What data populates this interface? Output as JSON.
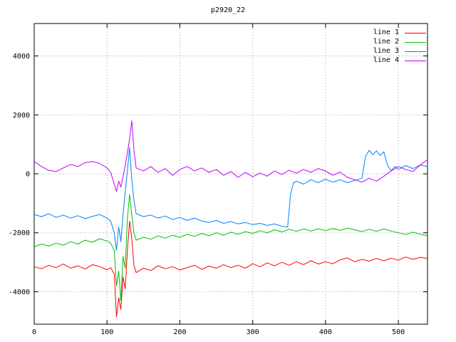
{
  "title": "p2920_22",
  "chart_data": {
    "type": "line",
    "title": "p2920_22",
    "xlabel": "",
    "ylabel": "",
    "xlim": [
      0,
      540
    ],
    "ylim": [
      -5100,
      5100
    ],
    "xticks": [
      0,
      100,
      200,
      300,
      400,
      500
    ],
    "yticks": [
      -4000,
      -2000,
      0,
      2000,
      4000
    ],
    "grid": true,
    "grid_color": "#a0a0a0",
    "border_color": "#000000",
    "legend_position": "top-right",
    "series": [
      {
        "name": "line 1",
        "color": "#ff0000",
        "points": [
          [
            0,
            -3150
          ],
          [
            10,
            -3220
          ],
          [
            20,
            -3100
          ],
          [
            30,
            -3180
          ],
          [
            40,
            -3060
          ],
          [
            50,
            -3200
          ],
          [
            60,
            -3120
          ],
          [
            70,
            -3230
          ],
          [
            80,
            -3080
          ],
          [
            90,
            -3150
          ],
          [
            100,
            -3250
          ],
          [
            105,
            -3180
          ],
          [
            110,
            -3400
          ],
          [
            113,
            -4850
          ],
          [
            116,
            -4200
          ],
          [
            119,
            -4600
          ],
          [
            122,
            -3500
          ],
          [
            125,
            -3900
          ],
          [
            128,
            -2600
          ],
          [
            131,
            -1600
          ],
          [
            134,
            -2200
          ],
          [
            137,
            -3100
          ],
          [
            140,
            -3350
          ],
          [
            150,
            -3200
          ],
          [
            160,
            -3280
          ],
          [
            170,
            -3120
          ],
          [
            180,
            -3220
          ],
          [
            190,
            -3150
          ],
          [
            200,
            -3260
          ],
          [
            210,
            -3180
          ],
          [
            220,
            -3100
          ],
          [
            230,
            -3240
          ],
          [
            240,
            -3130
          ],
          [
            250,
            -3200
          ],
          [
            260,
            -3080
          ],
          [
            270,
            -3180
          ],
          [
            280,
            -3100
          ],
          [
            290,
            -3200
          ],
          [
            300,
            -3050
          ],
          [
            310,
            -3150
          ],
          [
            320,
            -3020
          ],
          [
            330,
            -3120
          ],
          [
            340,
            -3000
          ],
          [
            350,
            -3100
          ],
          [
            360,
            -2980
          ],
          [
            370,
            -3080
          ],
          [
            380,
            -2950
          ],
          [
            390,
            -3060
          ],
          [
            400,
            -2980
          ],
          [
            410,
            -3050
          ],
          [
            420,
            -2920
          ],
          [
            430,
            -2850
          ],
          [
            440,
            -2980
          ],
          [
            450,
            -2900
          ],
          [
            460,
            -2960
          ],
          [
            470,
            -2870
          ],
          [
            480,
            -2950
          ],
          [
            490,
            -2860
          ],
          [
            500,
            -2930
          ],
          [
            510,
            -2820
          ],
          [
            520,
            -2900
          ],
          [
            530,
            -2830
          ],
          [
            540,
            -2870
          ]
        ]
      },
      {
        "name": "line 2",
        "color": "#00c000",
        "points": [
          [
            0,
            -2480
          ],
          [
            10,
            -2380
          ],
          [
            20,
            -2450
          ],
          [
            30,
            -2350
          ],
          [
            40,
            -2420
          ],
          [
            50,
            -2300
          ],
          [
            60,
            -2380
          ],
          [
            70,
            -2250
          ],
          [
            80,
            -2320
          ],
          [
            90,
            -2200
          ],
          [
            100,
            -2280
          ],
          [
            105,
            -2350
          ],
          [
            110,
            -2600
          ],
          [
            113,
            -3800
          ],
          [
            116,
            -3300
          ],
          [
            119,
            -4300
          ],
          [
            122,
            -2800
          ],
          [
            125,
            -3200
          ],
          [
            128,
            -1500
          ],
          [
            131,
            -700
          ],
          [
            134,
            -1400
          ],
          [
            137,
            -2000
          ],
          [
            140,
            -2250
          ],
          [
            150,
            -2150
          ],
          [
            160,
            -2220
          ],
          [
            170,
            -2100
          ],
          [
            180,
            -2180
          ],
          [
            190,
            -2080
          ],
          [
            200,
            -2150
          ],
          [
            210,
            -2050
          ],
          [
            220,
            -2120
          ],
          [
            230,
            -2020
          ],
          [
            240,
            -2100
          ],
          [
            250,
            -2000
          ],
          [
            260,
            -2080
          ],
          [
            270,
            -1980
          ],
          [
            280,
            -2050
          ],
          [
            290,
            -1960
          ],
          [
            300,
            -2020
          ],
          [
            310,
            -1930
          ],
          [
            320,
            -2000
          ],
          [
            330,
            -1900
          ],
          [
            340,
            -1970
          ],
          [
            350,
            -1880
          ],
          [
            360,
            -1950
          ],
          [
            370,
            -1870
          ],
          [
            380,
            -1940
          ],
          [
            390,
            -1860
          ],
          [
            400,
            -1930
          ],
          [
            410,
            -1850
          ],
          [
            420,
            -1920
          ],
          [
            430,
            -1840
          ],
          [
            440,
            -1900
          ],
          [
            450,
            -1960
          ],
          [
            460,
            -1880
          ],
          [
            470,
            -1950
          ],
          [
            480,
            -1870
          ],
          [
            490,
            -1940
          ],
          [
            500,
            -2000
          ],
          [
            510,
            -2060
          ],
          [
            520,
            -1980
          ],
          [
            530,
            -2050
          ],
          [
            540,
            -2100
          ]
        ]
      },
      {
        "name": "line 3",
        "color": "#0080ff",
        "points": [
          [
            0,
            -1380
          ],
          [
            10,
            -1450
          ],
          [
            20,
            -1350
          ],
          [
            30,
            -1480
          ],
          [
            40,
            -1400
          ],
          [
            50,
            -1500
          ],
          [
            60,
            -1420
          ],
          [
            70,
            -1520
          ],
          [
            80,
            -1440
          ],
          [
            90,
            -1380
          ],
          [
            100,
            -1500
          ],
          [
            105,
            -1600
          ],
          [
            110,
            -2000
          ],
          [
            113,
            -2600
          ],
          [
            116,
            -1800
          ],
          [
            119,
            -2300
          ],
          [
            122,
            -1400
          ],
          [
            125,
            -600
          ],
          [
            128,
            100
          ],
          [
            131,
            900
          ],
          [
            134,
            -200
          ],
          [
            137,
            -900
          ],
          [
            140,
            -1350
          ],
          [
            150,
            -1450
          ],
          [
            160,
            -1400
          ],
          [
            170,
            -1500
          ],
          [
            180,
            -1430
          ],
          [
            190,
            -1550
          ],
          [
            200,
            -1480
          ],
          [
            210,
            -1580
          ],
          [
            220,
            -1500
          ],
          [
            230,
            -1600
          ],
          [
            240,
            -1650
          ],
          [
            250,
            -1580
          ],
          [
            260,
            -1680
          ],
          [
            270,
            -1620
          ],
          [
            280,
            -1700
          ],
          [
            290,
            -1650
          ],
          [
            300,
            -1720
          ],
          [
            310,
            -1680
          ],
          [
            320,
            -1750
          ],
          [
            330,
            -1700
          ],
          [
            340,
            -1780
          ],
          [
            348,
            -1800
          ],
          [
            352,
            -700
          ],
          [
            356,
            -300
          ],
          [
            360,
            -250
          ],
          [
            370,
            -350
          ],
          [
            380,
            -200
          ],
          [
            390,
            -300
          ],
          [
            400,
            -180
          ],
          [
            410,
            -280
          ],
          [
            420,
            -200
          ],
          [
            430,
            -300
          ],
          [
            440,
            -220
          ],
          [
            450,
            -150
          ],
          [
            455,
            600
          ],
          [
            460,
            800
          ],
          [
            465,
            650
          ],
          [
            470,
            780
          ],
          [
            475,
            620
          ],
          [
            480,
            750
          ],
          [
            485,
            300
          ],
          [
            490,
            100
          ],
          [
            495,
            250
          ],
          [
            500,
            150
          ],
          [
            510,
            280
          ],
          [
            520,
            180
          ],
          [
            530,
            300
          ],
          [
            540,
            250
          ]
        ]
      },
      {
        "name": "line 4",
        "color": "#c000ff",
        "points": [
          [
            0,
            420
          ],
          [
            10,
            250
          ],
          [
            20,
            120
          ],
          [
            30,
            80
          ],
          [
            40,
            200
          ],
          [
            50,
            320
          ],
          [
            60,
            250
          ],
          [
            70,
            380
          ],
          [
            80,
            420
          ],
          [
            90,
            350
          ],
          [
            100,
            200
          ],
          [
            105,
            50
          ],
          [
            110,
            -350
          ],
          [
            113,
            -600
          ],
          [
            116,
            -250
          ],
          [
            119,
            -450
          ],
          [
            122,
            -100
          ],
          [
            125,
            300
          ],
          [
            128,
            700
          ],
          [
            131,
            1200
          ],
          [
            134,
            1800
          ],
          [
            137,
            800
          ],
          [
            140,
            200
          ],
          [
            150,
            100
          ],
          [
            160,
            250
          ],
          [
            170,
            50
          ],
          [
            180,
            180
          ],
          [
            190,
            -50
          ],
          [
            200,
            150
          ],
          [
            210,
            250
          ],
          [
            220,
            100
          ],
          [
            230,
            200
          ],
          [
            240,
            50
          ],
          [
            250,
            150
          ],
          [
            260,
            -50
          ],
          [
            270,
            80
          ],
          [
            280,
            -120
          ],
          [
            290,
            50
          ],
          [
            300,
            -100
          ],
          [
            310,
            30
          ],
          [
            320,
            -80
          ],
          [
            330,
            100
          ],
          [
            340,
            -20
          ],
          [
            350,
            120
          ],
          [
            360,
            20
          ],
          [
            370,
            150
          ],
          [
            380,
            50
          ],
          [
            390,
            180
          ],
          [
            400,
            100
          ],
          [
            410,
            -50
          ],
          [
            420,
            60
          ],
          [
            430,
            -120
          ],
          [
            440,
            -200
          ],
          [
            450,
            -280
          ],
          [
            460,
            -150
          ],
          [
            470,
            -250
          ],
          [
            480,
            -80
          ],
          [
            490,
            100
          ],
          [
            500,
            250
          ],
          [
            510,
            150
          ],
          [
            520,
            80
          ],
          [
            530,
            300
          ],
          [
            540,
            480
          ]
        ]
      }
    ]
  }
}
